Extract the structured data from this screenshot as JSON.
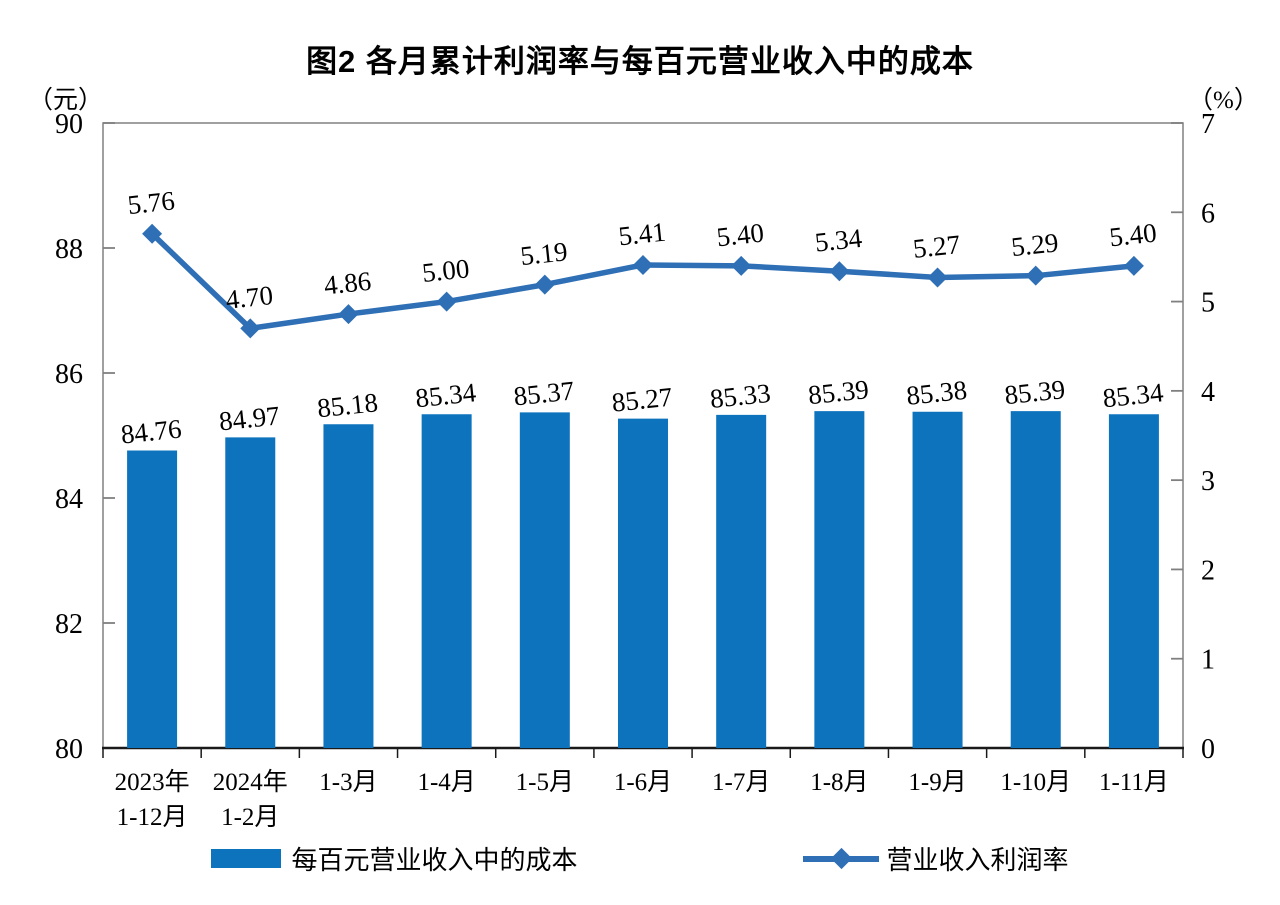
{
  "title": "图2 各月累计利润率与每百元营业收入中的成本",
  "chart_data": {
    "type": "bar+line",
    "title": "图2 各月累计利润率与每百元营业收入中的成本",
    "categories": [
      "2023年\n1-12月",
      "2024年\n1-2月",
      "1-3月",
      "1-4月",
      "1-5月",
      "1-6月",
      "1-7月",
      "1-8月",
      "1-9月",
      "1-10月",
      "1-11月"
    ],
    "series": [
      {
        "name": "每百元营业收入中的成本",
        "type": "bar",
        "axis": "left",
        "color": "#0D73BD",
        "values": [
          84.76,
          84.97,
          85.18,
          85.34,
          85.37,
          85.27,
          85.33,
          85.39,
          85.38,
          85.39,
          85.34
        ]
      },
      {
        "name": "营业收入利润率",
        "type": "line",
        "axis": "right",
        "color": "#2E6FB5",
        "values": [
          5.76,
          4.7,
          4.86,
          5.0,
          5.19,
          5.41,
          5.4,
          5.34,
          5.27,
          5.29,
          5.4
        ]
      }
    ],
    "left_axis": {
      "unit": "（元）",
      "min": 80,
      "max": 90,
      "step": 2
    },
    "right_axis": {
      "unit": "（%）",
      "min": 0,
      "max": 7,
      "step": 1
    },
    "grid": false,
    "legend_position": "bottom",
    "label_decimals": 2
  }
}
